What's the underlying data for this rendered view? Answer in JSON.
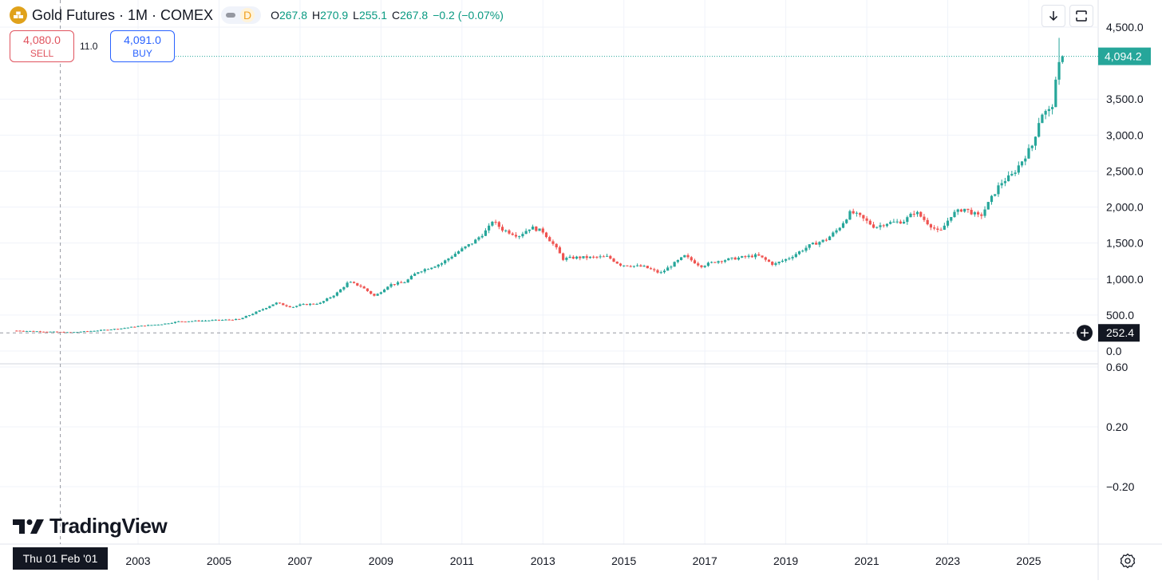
{
  "header": {
    "symbol_title": "Gold Futures · 1M · COMEX",
    "badge": "D",
    "ohlc": [
      {
        "key": "O",
        "value": "267.8"
      },
      {
        "key": "H",
        "value": "270.9"
      },
      {
        "key": "L",
        "value": "255.1"
      },
      {
        "key": "C",
        "value": "267.8"
      },
      {
        "key": "",
        "value": "−0.2 (−0.07%)"
      }
    ]
  },
  "trade": {
    "sell_price": "4,080.0",
    "sell_label": "SELL",
    "spread": "11.0",
    "buy_price": "4,091.0",
    "buy_label": "BUY"
  },
  "brand": {
    "name": "TradingView"
  },
  "crosshair": {
    "date_label": "Thu 01 Feb '01",
    "price_label": "252.4",
    "price_value": 252.4,
    "date_value": 2001.08
  },
  "last_price": {
    "label": "4,094.2",
    "value": 4094.2
  },
  "colors": {
    "up": "#26a69a",
    "down": "#ef5350",
    "last_price_tag": "#26a69a",
    "crosshair_tag": "#131722",
    "text": "#131722",
    "grid": "#f0f3fa"
  },
  "icons": {
    "logo": "gold-bars-icon",
    "download": "download-arrow-icon",
    "fullscreen": "fullscreen-icon",
    "settings": "gear-icon",
    "crosshair_add": "plus-circle-icon",
    "brand": "tradingview-logo-icon"
  },
  "chart_data": {
    "type": "candlestick",
    "title": "Gold Futures · 1M · COMEX",
    "interval": "1M",
    "x_ticks": [
      "2003",
      "2005",
      "2007",
      "2009",
      "2011",
      "2013",
      "2015",
      "2017",
      "2019",
      "2021",
      "2023",
      "2025"
    ],
    "x_range": [
      2000.0,
      2026.6
    ],
    "main_pane": {
      "y_ticks": [
        "4,500.0",
        "3,500.0",
        "3,000.0",
        "2,500.0",
        "2,000.0",
        "1,500.0",
        "1,000.0",
        "500.0",
        "0.0"
      ],
      "y_tick_values": [
        4500,
        3500,
        3000,
        2500,
        2000,
        1500,
        1000,
        500,
        0
      ],
      "ylim": [
        0,
        4500
      ],
      "price_anchors": [
        [
          2000.0,
          283
        ],
        [
          2001.0,
          265
        ],
        [
          2001.3,
          258
        ],
        [
          2002.0,
          285
        ],
        [
          2002.6,
          315
        ],
        [
          2003.0,
          345
        ],
        [
          2003.6,
          375
        ],
        [
          2004.0,
          410
        ],
        [
          2005.0,
          430
        ],
        [
          2005.5,
          440
        ],
        [
          2006.0,
          560
        ],
        [
          2006.4,
          670
        ],
        [
          2006.8,
          610
        ],
        [
          2007.0,
          640
        ],
        [
          2007.5,
          665
        ],
        [
          2007.9,
          800
        ],
        [
          2008.2,
          960
        ],
        [
          2008.5,
          900
        ],
        [
          2008.85,
          760
        ],
        [
          2009.2,
          920
        ],
        [
          2009.6,
          960
        ],
        [
          2009.9,
          1100
        ],
        [
          2010.5,
          1220
        ],
        [
          2010.9,
          1380
        ],
        [
          2011.3,
          1520
        ],
        [
          2011.65,
          1700
        ],
        [
          2011.75,
          1810
        ],
        [
          2012.0,
          1690
        ],
        [
          2012.4,
          1600
        ],
        [
          2012.7,
          1720
        ],
        [
          2013.0,
          1660
        ],
        [
          2013.3,
          1450
        ],
        [
          2013.5,
          1280
        ],
        [
          2013.8,
          1300
        ],
        [
          2014.2,
          1300
        ],
        [
          2014.6,
          1310
        ],
        [
          2014.9,
          1200
        ],
        [
          2015.5,
          1170
        ],
        [
          2015.9,
          1080
        ],
        [
          2016.5,
          1320
        ],
        [
          2016.9,
          1180
        ],
        [
          2017.3,
          1250
        ],
        [
          2017.9,
          1300
        ],
        [
          2018.3,
          1330
        ],
        [
          2018.7,
          1200
        ],
        [
          2019.1,
          1300
        ],
        [
          2019.6,
          1470
        ],
        [
          2020.0,
          1550
        ],
        [
          2020.3,
          1700
        ],
        [
          2020.6,
          1930
        ],
        [
          2020.8,
          1880
        ],
        [
          2021.2,
          1720
        ],
        [
          2021.5,
          1780
        ],
        [
          2021.9,
          1800
        ],
        [
          2022.2,
          1940
        ],
        [
          2022.5,
          1780
        ],
        [
          2022.8,
          1640
        ],
        [
          2023.1,
          1900
        ],
        [
          2023.4,
          1980
        ],
        [
          2023.8,
          1860
        ],
        [
          2024.0,
          2050
        ],
        [
          2024.3,
          2330
        ],
        [
          2024.6,
          2450
        ],
        [
          2024.9,
          2700
        ],
        [
          2025.1,
          2870
        ],
        [
          2025.3,
          3300
        ],
        [
          2025.5,
          3330
        ],
        [
          2025.6,
          3450
        ],
        [
          2025.7,
          3850
        ],
        [
          2025.8,
          4094.2
        ]
      ]
    },
    "lower_pane": {
      "y_ticks": [
        "0.60",
        "0.20",
        "−0.20"
      ],
      "y_tick_values": [
        0.6,
        0.2,
        -0.2
      ]
    }
  }
}
